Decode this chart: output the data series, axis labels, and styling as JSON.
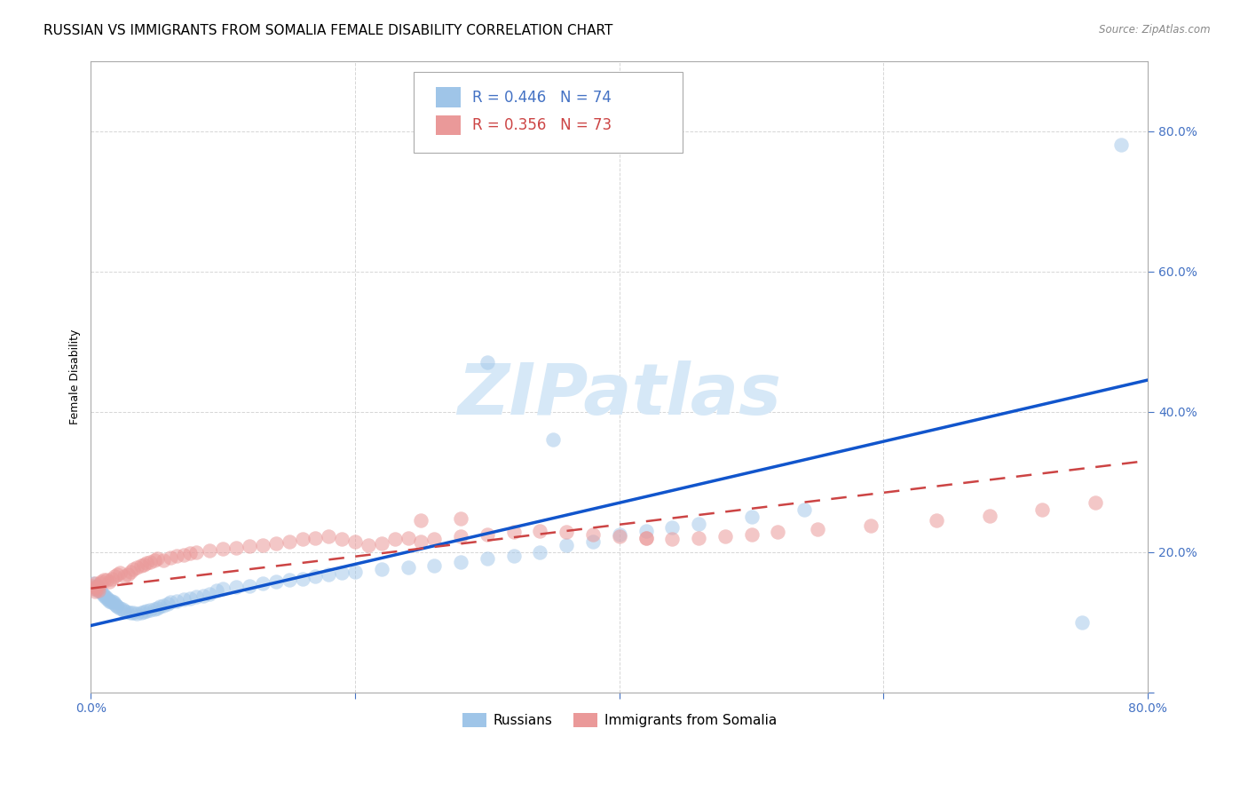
{
  "title": "RUSSIAN VS IMMIGRANTS FROM SOMALIA FEMALE DISABILITY CORRELATION CHART",
  "source": "Source: ZipAtlas.com",
  "tick_color": "#4472c4",
  "ylabel": "Female Disability",
  "xlim": [
    0.0,
    0.8
  ],
  "ylim": [
    0.0,
    0.9
  ],
  "xticks": [
    0.0,
    0.2,
    0.4,
    0.6,
    0.8
  ],
  "yticks": [
    0.0,
    0.2,
    0.4,
    0.6,
    0.8
  ],
  "ytick_labels": [
    "",
    "20.0%",
    "40.0%",
    "60.0%",
    "80.0%"
  ],
  "xtick_labels": [
    "0.0%",
    "",
    "",
    "",
    "80.0%"
  ],
  "russian_R": 0.446,
  "russian_N": 74,
  "somalia_R": 0.356,
  "somalia_N": 73,
  "russian_color": "#9fc5e8",
  "somalia_color": "#ea9999",
  "russian_line_color": "#1155cc",
  "somalia_line_color": "#cc4444",
  "background_color": "#ffffff",
  "grid_color": "#cccccc",
  "watermark_text": "ZIPatlas",
  "watermark_color": "#d6e8f7",
  "title_fontsize": 11,
  "axis_label_fontsize": 9,
  "tick_fontsize": 10,
  "legend_fontsize": 11,
  "russians_scatter_x": [
    0.002,
    0.003,
    0.004,
    0.005,
    0.005,
    0.006,
    0.007,
    0.008,
    0.009,
    0.01,
    0.011,
    0.012,
    0.013,
    0.014,
    0.015,
    0.016,
    0.017,
    0.018,
    0.019,
    0.02,
    0.022,
    0.024,
    0.025,
    0.027,
    0.03,
    0.032,
    0.035,
    0.038,
    0.04,
    0.042,
    0.045,
    0.048,
    0.05,
    0.052,
    0.055,
    0.058,
    0.06,
    0.065,
    0.07,
    0.075,
    0.08,
    0.085,
    0.09,
    0.095,
    0.1,
    0.11,
    0.12,
    0.13,
    0.14,
    0.15,
    0.16,
    0.17,
    0.18,
    0.19,
    0.2,
    0.22,
    0.24,
    0.26,
    0.28,
    0.3,
    0.32,
    0.34,
    0.36,
    0.38,
    0.4,
    0.42,
    0.44,
    0.46,
    0.5,
    0.54,
    0.3,
    0.35,
    0.75,
    0.78
  ],
  "russians_scatter_y": [
    0.155,
    0.15,
    0.148,
    0.145,
    0.152,
    0.148,
    0.145,
    0.142,
    0.14,
    0.138,
    0.136,
    0.134,
    0.132,
    0.13,
    0.128,
    0.13,
    0.128,
    0.126,
    0.124,
    0.122,
    0.12,
    0.118,
    0.116,
    0.115,
    0.114,
    0.113,
    0.112,
    0.114,
    0.115,
    0.116,
    0.117,
    0.118,
    0.12,
    0.122,
    0.124,
    0.126,
    0.128,
    0.13,
    0.132,
    0.134,
    0.136,
    0.138,
    0.14,
    0.145,
    0.148,
    0.15,
    0.152,
    0.155,
    0.158,
    0.16,
    0.162,
    0.165,
    0.168,
    0.17,
    0.172,
    0.175,
    0.178,
    0.18,
    0.185,
    0.19,
    0.195,
    0.2,
    0.21,
    0.215,
    0.225,
    0.23,
    0.235,
    0.24,
    0.25,
    0.26,
    0.47,
    0.36,
    0.1,
    0.78
  ],
  "somalia_scatter_x": [
    0.001,
    0.002,
    0.003,
    0.003,
    0.004,
    0.005,
    0.006,
    0.007,
    0.008,
    0.01,
    0.012,
    0.014,
    0.016,
    0.018,
    0.02,
    0.022,
    0.025,
    0.028,
    0.03,
    0.032,
    0.035,
    0.038,
    0.04,
    0.042,
    0.045,
    0.048,
    0.05,
    0.055,
    0.06,
    0.065,
    0.07,
    0.075,
    0.08,
    0.09,
    0.1,
    0.11,
    0.12,
    0.13,
    0.14,
    0.15,
    0.16,
    0.17,
    0.18,
    0.19,
    0.2,
    0.21,
    0.22,
    0.23,
    0.24,
    0.25,
    0.26,
    0.28,
    0.3,
    0.32,
    0.34,
    0.36,
    0.38,
    0.4,
    0.42,
    0.44,
    0.46,
    0.48,
    0.5,
    0.52,
    0.55,
    0.59,
    0.64,
    0.68,
    0.72,
    0.76,
    0.25,
    0.28,
    0.42
  ],
  "somalia_scatter_y": [
    0.152,
    0.148,
    0.144,
    0.155,
    0.15,
    0.148,
    0.145,
    0.155,
    0.158,
    0.16,
    0.16,
    0.158,
    0.162,
    0.165,
    0.168,
    0.17,
    0.165,
    0.168,
    0.172,
    0.175,
    0.178,
    0.18,
    0.182,
    0.184,
    0.186,
    0.188,
    0.19,
    0.188,
    0.192,
    0.194,
    0.196,
    0.198,
    0.2,
    0.202,
    0.204,
    0.206,
    0.208,
    0.21,
    0.212,
    0.215,
    0.218,
    0.22,
    0.222,
    0.218,
    0.215,
    0.21,
    0.212,
    0.218,
    0.22,
    0.215,
    0.218,
    0.222,
    0.225,
    0.228,
    0.23,
    0.228,
    0.225,
    0.222,
    0.22,
    0.218,
    0.22,
    0.222,
    0.225,
    0.228,
    0.232,
    0.238,
    0.245,
    0.252,
    0.26,
    0.27,
    0.245,
    0.248,
    0.22
  ],
  "russian_line_start_x": 0.0,
  "russian_line_end_x": 0.8,
  "russian_line_start_y": 0.095,
  "russian_line_end_y": 0.445,
  "somalia_line_start_x": 0.0,
  "somalia_line_end_x": 0.8,
  "somalia_line_start_y": 0.148,
  "somalia_line_end_y": 0.33
}
